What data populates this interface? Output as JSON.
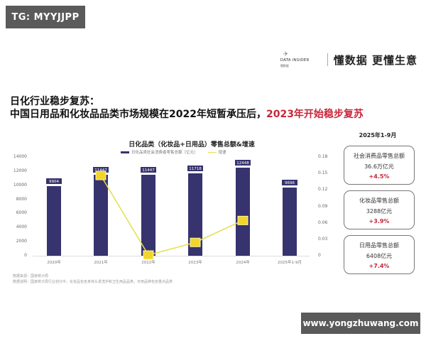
{
  "watermarks": {
    "top_left": "TG: MYYJJPP",
    "bottom_right": "www.yongzhuwang.com"
  },
  "brand": {
    "logo_text": "DATA INSIDER",
    "logo_sub": "懂数据",
    "slogan": "懂数据 更懂生意"
  },
  "headline": {
    "line1": "日化行业稳步复苏：",
    "line2_prefix": "中国日用品和化妆品品类市场规模在2022年短暂承压后，",
    "line2_highlight": "2023年开始稳步复苏"
  },
  "chart_data": {
    "type": "bar",
    "title": "日化品类（化妆品+日用品）零售总额&增速",
    "legend": [
      {
        "name": "日化品类社会消费者零售总额（亿元）",
        "color": "#36336e",
        "type": "bar"
      },
      {
        "name": "增速",
        "color": "#e3e04a",
        "type": "line"
      }
    ],
    "categories": [
      "2020年",
      "2021年",
      "2022年",
      "2023年",
      "2024年",
      "2025年1-9月"
    ],
    "series": [
      {
        "name": "日化品类社会消费者零售总额（亿元）",
        "axis": "left",
        "values": [
          9904,
          11447,
          11447,
          11718,
          12448,
          9696
        ]
      },
      {
        "name": "增速",
        "axis": "right",
        "values": [
          null,
          0.145,
          0.0,
          0.023,
          0.063,
          null
        ]
      }
    ],
    "left_axis": {
      "ticks": [
        "14000",
        "12000",
        "10000",
        "8000",
        "6000",
        "4000",
        "2000",
        "0"
      ],
      "ylim": [
        0,
        14000
      ]
    },
    "right_axis": {
      "ticks": [
        "0.18",
        "0.15",
        "0.12",
        "0.09",
        "0.06",
        "0.03",
        "0"
      ],
      "ylim": [
        0,
        0.18
      ]
    },
    "xlabel": "",
    "ylabel": "",
    "grid": false,
    "legend_position": "top"
  },
  "notes": {
    "source": "数据来源：国家统计局",
    "description": "数据说明：国家统计局行业划分中，化妆品包含身体头发洗护和卫生用品品类，日用品种包含重点品类"
  },
  "side_panel": {
    "period": "2025年1-9月",
    "kpis": [
      {
        "label": "社会消费品零售总额",
        "value": "36.6万亿元",
        "growth": "+4.5%"
      },
      {
        "label": "化妆品零售总额",
        "value": "3288亿元",
        "growth": "+3.9%"
      },
      {
        "label": "日用品零售总额",
        "value": "6408亿元",
        "growth": "+7.4%"
      }
    ]
  },
  "colors": {
    "bar": "#36336e",
    "line": "#e3e04a",
    "highlight": "#c8263a",
    "watermark_bg": "#5a5a5a"
  }
}
